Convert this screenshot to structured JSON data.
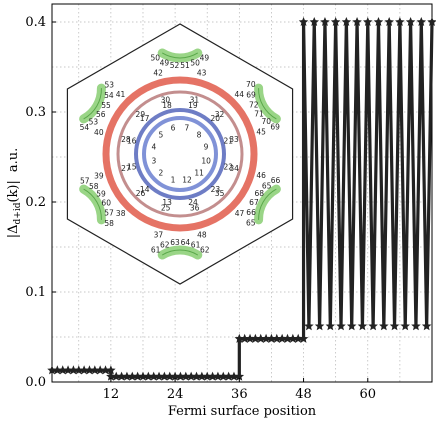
{
  "chart_data": {
    "type": "line",
    "xlabel": "Fermi surface position",
    "ylabel_main": "|Δ",
    "ylabel_sub": "d+id",
    "ylabel_arg": "(k)|",
    "ylabel_unit": "a.u.",
    "xlim": [
      1,
      72
    ],
    "ylim": [
      0,
      0.42
    ],
    "x_ticks": [
      12,
      24,
      36,
      48,
      60
    ],
    "y_ticks": [
      0,
      0.1,
      0.2,
      0.3,
      0.4
    ],
    "y_tick_labels": [
      "0.0",
      "0.1",
      "0.2",
      "0.3",
      "0.4"
    ],
    "grid": true,
    "series": [
      {
        "color": "#222222",
        "marker": "star",
        "x": [
          1,
          2,
          3,
          4,
          5,
          6,
          7,
          8,
          9,
          10,
          11,
          12,
          12,
          13,
          14,
          15,
          16,
          17,
          18,
          19,
          20,
          21,
          22,
          23,
          24,
          25,
          26,
          27,
          28,
          29,
          30,
          31,
          32,
          33,
          34,
          35,
          36,
          36,
          37,
          38,
          39,
          40,
          41,
          42,
          43,
          44,
          45,
          46,
          47,
          48,
          48,
          49,
          50,
          51,
          52,
          53,
          54,
          55,
          56,
          57,
          58,
          59,
          60,
          61,
          62,
          63,
          64,
          65,
          66,
          67,
          68,
          69,
          70,
          71,
          72
        ],
        "y": [
          0.013,
          0.013,
          0.013,
          0.013,
          0.013,
          0.013,
          0.013,
          0.013,
          0.013,
          0.013,
          0.013,
          0.013,
          0.006,
          0.006,
          0.006,
          0.006,
          0.006,
          0.006,
          0.006,
          0.006,
          0.006,
          0.006,
          0.006,
          0.006,
          0.006,
          0.006,
          0.006,
          0.006,
          0.006,
          0.006,
          0.006,
          0.006,
          0.006,
          0.006,
          0.006,
          0.006,
          0.006,
          0.048,
          0.048,
          0.048,
          0.048,
          0.048,
          0.048,
          0.048,
          0.048,
          0.048,
          0.048,
          0.048,
          0.048,
          0.048,
          0.4,
          0.062,
          0.4,
          0.062,
          0.4,
          0.062,
          0.4,
          0.062,
          0.4,
          0.062,
          0.4,
          0.062,
          0.4,
          0.062,
          0.4,
          0.062,
          0.4,
          0.062,
          0.4,
          0.062,
          0.4,
          0.062,
          0.4,
          0.062,
          0.4
        ]
      }
    ],
    "inset": {
      "hexagon_color": "#222222",
      "pocket_color": "#8fd07a",
      "ring_colors": [
        "#6a7fd0",
        "#5566bb",
        "#b97a7a",
        "#e05a4a"
      ],
      "labels": [
        "1",
        "2",
        "3",
        "4",
        "5",
        "6",
        "7",
        "8",
        "9",
        "10",
        "11",
        "12",
        "13",
        "14",
        "15",
        "16",
        "17",
        "18",
        "19",
        "20",
        "21",
        "22",
        "23",
        "24",
        "25",
        "26",
        "27",
        "28",
        "29",
        "30",
        "31",
        "32",
        "33",
        "34",
        "35",
        "36",
        "37",
        "38",
        "39",
        "40",
        "41",
        "42",
        "43",
        "44",
        "45",
        "46",
        "47",
        "48",
        "49",
        "50",
        "51",
        "52",
        "53",
        "54",
        "55",
        "56",
        "57",
        "58",
        "59",
        "60",
        "61",
        "62",
        "63",
        "64",
        "65",
        "66",
        "67",
        "68",
        "69",
        "70",
        "71",
        "72"
      ]
    }
  }
}
